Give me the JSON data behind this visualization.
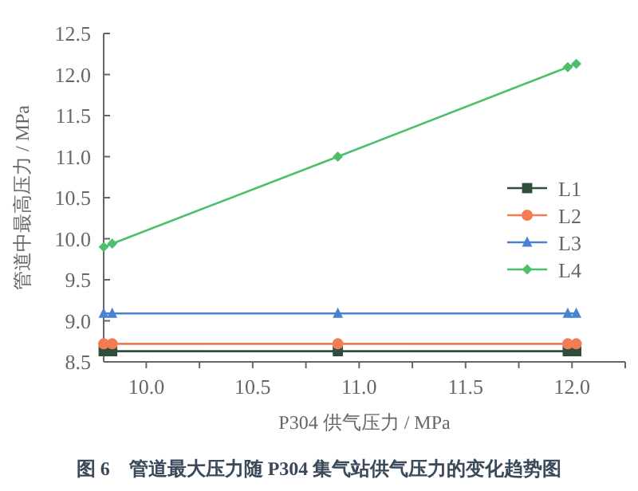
{
  "chart_data": {
    "type": "line",
    "title": "图 6　管道最大压力随 P304 集气站供气压力的变化趋势图",
    "xlabel": "P304 供气压力 / MPa",
    "ylabel": "管道中最高压力 / MPa",
    "x": [
      9.8,
      9.84,
      10.9,
      11.98,
      12.02
    ],
    "series": [
      {
        "name": "L1",
        "color": "#2f4f3c",
        "marker": "square",
        "values": [
          8.63,
          8.63,
          8.63,
          8.63,
          8.63
        ]
      },
      {
        "name": "L2",
        "color": "#f47c55",
        "marker": "circle",
        "values": [
          8.72,
          8.72,
          8.72,
          8.72,
          8.72
        ]
      },
      {
        "name": "L3",
        "color": "#4a82d2",
        "marker": "triangle",
        "values": [
          9.09,
          9.09,
          9.09,
          9.09,
          9.09
        ]
      },
      {
        "name": "L4",
        "color": "#4cbf6c",
        "marker": "diamond",
        "values": [
          9.9,
          9.94,
          11.0,
          12.09,
          12.13
        ]
      }
    ],
    "xlim": [
      9.8,
      12.25
    ],
    "xticks": [
      {
        "value": 10,
        "label": "10.0"
      },
      {
        "value": 10.25,
        "label": null
      },
      10.5,
      {
        "value": 10.75,
        "label": null
      },
      {
        "value": 11,
        "label": "11.0"
      },
      {
        "value": 11.25,
        "label": null
      },
      11.5,
      {
        "value": 11.75,
        "label": null
      },
      {
        "value": 12,
        "label": "12.0"
      },
      {
        "value": 12.25,
        "label": null
      }
    ],
    "ylim": [
      8.5,
      12.5
    ],
    "yticks": [
      8.5,
      {
        "value": 9,
        "label": "9.0"
      },
      9.5,
      {
        "value": 10,
        "label": "10.0"
      },
      10.5,
      {
        "value": 11,
        "label": "11.0"
      },
      11.5,
      {
        "value": 12,
        "label": "12.0"
      },
      12.5
    ],
    "grid": false,
    "legend": "right",
    "line_style": "solid"
  }
}
